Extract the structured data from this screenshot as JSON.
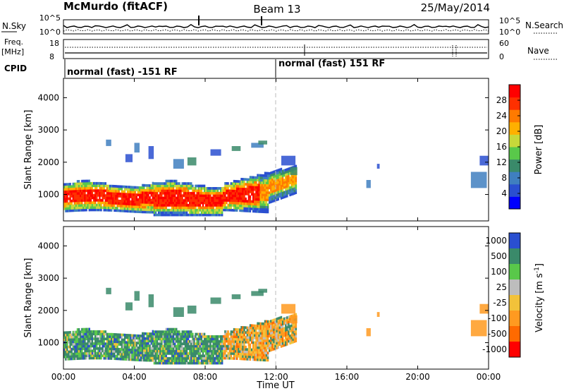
{
  "header": {
    "station": "McMurdo (fitACF)",
    "beam": "Beam 13",
    "date": "25/May/2014"
  },
  "sky_panel": {
    "left_label": "N.Sky",
    "right_label": "N.Search",
    "left_ticks": [
      "10^5",
      "10^0"
    ],
    "right_ticks": [
      "10^5",
      "10^0"
    ]
  },
  "freq_panel": {
    "left_label_top": "Freq.",
    "left_label_unit": "[MHz]",
    "right_label": "Nave",
    "left_ticks": [
      "18",
      "8"
    ],
    "right_ticks": [
      "60",
      "0"
    ]
  },
  "cpid": {
    "label": "CPID",
    "segments": [
      {
        "text": "normal (fast) -151 RF",
        "start_hour": 0
      },
      {
        "text": "normal (fast) 151 RF",
        "start_hour": 12
      }
    ]
  },
  "colors": {
    "power_scale": [
      "#0000ff",
      "#2a4fd0",
      "#3f7fbf",
      "#3a8a6a",
      "#59c84a",
      "#c8d83a",
      "#ffb000",
      "#ff7a00",
      "#ff3000",
      "#ff0000"
    ],
    "velocity_scale": [
      "#2a4fd0",
      "#3a8a6a",
      "#59c84a",
      "#bdbdbd",
      "#f2c23a",
      "#ff9a20",
      "#ff6a00",
      "#ff0000"
    ]
  },
  "chart_data": [
    {
      "type": "heatmap",
      "panel": "power",
      "ylabel": "Slant Range [km]",
      "ylim": [
        180,
        4600
      ],
      "yticks": [
        1000,
        2000,
        3000,
        4000
      ],
      "xlim": [
        0,
        24
      ],
      "colorbar": {
        "label": "Power [dB]",
        "ticks": [
          4,
          8,
          12,
          16,
          20,
          24,
          28
        ],
        "range": [
          0,
          32
        ]
      }
    },
    {
      "type": "heatmap",
      "panel": "velocity",
      "ylabel": "Slant Range [km]",
      "ylim": [
        180,
        4600
      ],
      "yticks": [
        1000,
        2000,
        3000,
        4000
      ],
      "xlim": [
        0,
        24
      ],
      "xlabel": "Time UT",
      "xticks": [
        "00:00",
        "04:00",
        "08:00",
        "12:00",
        "16:00",
        "20:00",
        "00:00"
      ],
      "colorbar": {
        "label": "Velocity [m s^-1]",
        "ticks": [
          "1000",
          "500",
          "100",
          "25",
          "-25",
          "-100",
          "-500",
          "-1000"
        ]
      }
    }
  ]
}
